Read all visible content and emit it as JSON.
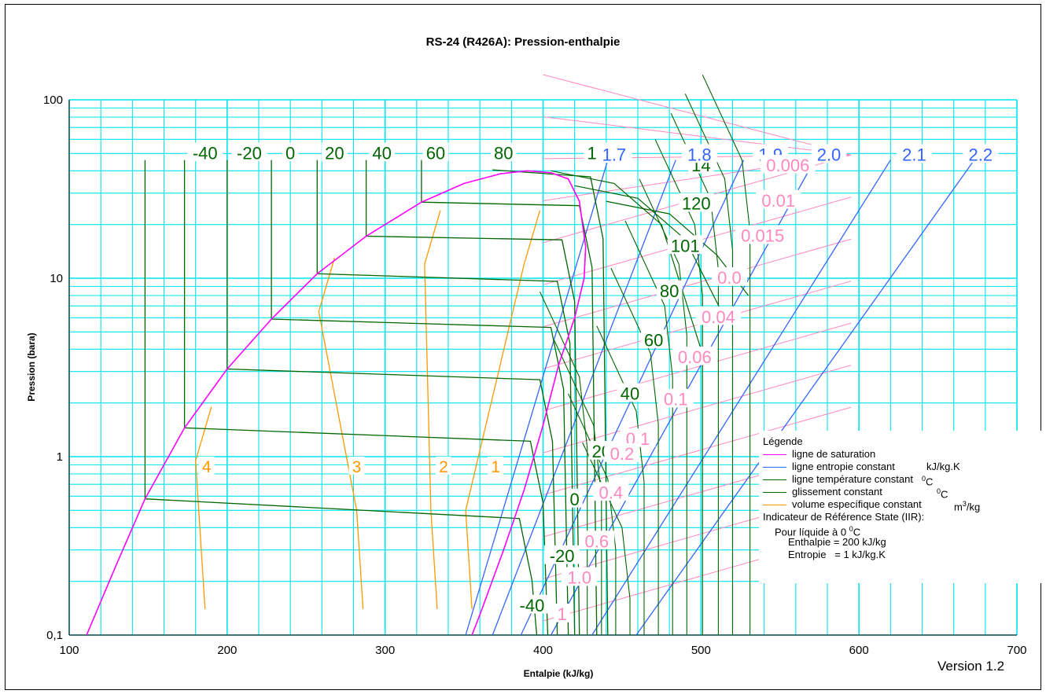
{
  "chart_data": {
    "type": "line",
    "title": "RS-24  (R426A):  Pression-enthalpie",
    "xlabel": "Entalpie (kJ/kg)",
    "ylabel": "Pression (bara)",
    "xlim": [
      100,
      700
    ],
    "ylim": [
      0.1,
      100
    ],
    "y_scale": "log",
    "grid": true,
    "x_ticks": [
      "100",
      "200",
      "300",
      "400",
      "500",
      "600",
      "700"
    ],
    "y_ticks": [
      {
        "v": 0.1,
        "label": "0,1"
      },
      {
        "v": 1,
        "label": "1"
      },
      {
        "v": 10,
        "label": "10"
      },
      {
        "v": 100,
        "label": "100"
      }
    ],
    "colors": {
      "saturation": "#ff00ff",
      "entropy": "#3366ff",
      "temperature": "#006600",
      "volume": "#ff9900",
      "volume_pink": "#ff88c0",
      "grid": "#00e5ee"
    },
    "saturation": [
      [
        111,
        0.1
      ],
      [
        130,
        0.25
      ],
      [
        148,
        0.58
      ],
      [
        173,
        1.45
      ],
      [
        200,
        3.1
      ],
      [
        228,
        5.9
      ],
      [
        257,
        10.6
      ],
      [
        288,
        17.2
      ],
      [
        323,
        26.7
      ],
      [
        350,
        34
      ],
      [
        373,
        38.5
      ],
      [
        390,
        40
      ],
      [
        405,
        39
      ],
      [
        416,
        36
      ],
      [
        423,
        27
      ],
      [
        425,
        20
      ],
      [
        427,
        15
      ],
      [
        426,
        10
      ],
      [
        420,
        6
      ],
      [
        410,
        3.3
      ],
      [
        400,
        1.5
      ],
      [
        388,
        0.65
      ],
      [
        375,
        0.3
      ],
      [
        360,
        0.13
      ],
      [
        355,
        0.1
      ]
    ],
    "temperature_labels": [
      {
        "t": "-40",
        "h": 186,
        "p": 48
      },
      {
        "t": "-20",
        "h": 214,
        "p": 48
      },
      {
        "t": "0",
        "h": 240,
        "p": 48
      },
      {
        "t": "20",
        "h": 268,
        "p": 48
      },
      {
        "t": "40",
        "h": 298,
        "p": 48
      },
      {
        "t": "60",
        "h": 332,
        "p": 48
      },
      {
        "t": "80",
        "h": 375,
        "p": 48
      },
      {
        "t": "101",
        "h": 437,
        "p": 48
      },
      {
        "t": "14",
        "h": 500,
        "p": 41
      },
      {
        "t": "120",
        "h": 497,
        "p": 25
      },
      {
        "t": "101",
        "h": 490,
        "p": 14.5
      },
      {
        "t": "80",
        "h": 480,
        "p": 8.1
      },
      {
        "t": "60",
        "h": 470,
        "p": 4.3
      },
      {
        "t": "40",
        "h": 455,
        "p": 2.15
      },
      {
        "t": "20",
        "h": 437,
        "p": 1.02
      },
      {
        "t": "0",
        "h": 420,
        "p": 0.55
      },
      {
        "t": "-20",
        "h": 412,
        "p": 0.265
      },
      {
        "t": "-40",
        "h": 393,
        "p": 0.14
      }
    ],
    "temperature_isotherms": [
      {
        "t": "-40",
        "h_liq": 148,
        "p_sat": 0.58,
        "h_end": 385,
        "p_end": 0.45
      },
      {
        "t": "-20",
        "h_liq": 173,
        "p_sat": 1.45,
        "h_end": 392,
        "p_end": 1.22
      },
      {
        "t": "0",
        "h_liq": 200,
        "p_sat": 3.1,
        "h_end": 398,
        "p_end": 2.7
      },
      {
        "t": "20",
        "h_liq": 228,
        "p_sat": 5.9,
        "h_end": 405,
        "p_end": 5.3
      },
      {
        "t": "40",
        "h_liq": 257,
        "p_sat": 10.6,
        "h_end": 409,
        "p_end": 9.6
      },
      {
        "t": "60",
        "h_liq": 288,
        "p_sat": 17.2,
        "h_end": 412,
        "p_end": 16.4
      },
      {
        "t": "80",
        "h_liq": 323,
        "p_sat": 26.7,
        "h_end": 423,
        "p_end": 25.5
      },
      {
        "t": "101",
        "h_liq": 368,
        "p_sat": 40.5,
        "h_end": 430,
        "p_end": 37
      }
    ],
    "entropy_labels": [
      {
        "s": "1.7",
        "h": 445,
        "p": 47
      },
      {
        "s": "1.8",
        "h": 499,
        "p": 47
      },
      {
        "s": "1.9",
        "h": 544,
        "p": 47
      },
      {
        "s": "2.0",
        "h": 581,
        "p": 47
      },
      {
        "s": "2.1",
        "h": 635,
        "p": 47
      },
      {
        "s": "2.2",
        "h": 677,
        "p": 47
      }
    ],
    "entropy_lines": [
      {
        "s": "1.7",
        "h0": 351,
        "h1": 441
      },
      {
        "s": "1.8",
        "h0": 368,
        "h1": 484
      },
      {
        "s": "1.9",
        "h0": 386,
        "h1": 527
      },
      {
        "s": "2.0",
        "h0": 405,
        "h1": 572
      },
      {
        "s": "2.1",
        "h0": 431,
        "h1": 620
      },
      {
        "s": "2.2",
        "h0": 459,
        "h1": 673
      }
    ],
    "volume_labels": [
      {
        "v": "0.006",
        "h": 555,
        "p": 41
      },
      {
        "v": "0.01",
        "h": 549,
        "p": 26
      },
      {
        "v": "0.015",
        "h": 539,
        "p": 16.5
      },
      {
        "v": "0.0",
        "h": 518,
        "p": 9.6
      },
      {
        "v": "0.04",
        "h": 511,
        "p": 5.8
      },
      {
        "v": "0.06",
        "h": 496,
        "p": 3.45
      },
      {
        "v": "0.1",
        "h": 484,
        "p": 2.0
      },
      {
        "v": "0.1",
        "h": 460,
        "p": 1.2
      },
      {
        "v": "0.2",
        "h": 450,
        "p": 0.99
      },
      {
        "v": "0.4",
        "h": 443,
        "p": 0.6
      },
      {
        "v": "0.6",
        "h": 434,
        "p": 0.32
      },
      {
        "v": "1.0",
        "h": 423,
        "p": 0.2
      },
      {
        "v": "1",
        "h": 412,
        "p": 0.125
      }
    ],
    "volume_liquid_labels": [
      {
        "v": "4",
        "h": 187,
        "p": 0.84
      },
      {
        "v": "3",
        "h": 282,
        "p": 0.84
      },
      {
        "v": "2",
        "h": 337,
        "p": 0.84
      },
      {
        "v": "1",
        "h": 370,
        "p": 0.84
      }
    ],
    "legend": {
      "title": "Légende",
      "items": [
        {
          "label": "ligne de saturation",
          "unit": ""
        },
        {
          "label": "ligne entropie constant",
          "unit": "kJ/kg.K"
        },
        {
          "label": "ligne température constant",
          "unit": "0C"
        },
        {
          "label": "glissement constant",
          "unit": "0C"
        },
        {
          "label": "volume específique constant",
          "unit": "m3/kg"
        }
      ],
      "ref_lines": [
        "Indicateur de Référence State (IIR):",
        "Pour líquide à 0 0C",
        "Enthalpie = 200 kJ/kg",
        "Entropie   = 1 kJ/kg.K"
      ]
    }
  },
  "version": "Version 1.2"
}
